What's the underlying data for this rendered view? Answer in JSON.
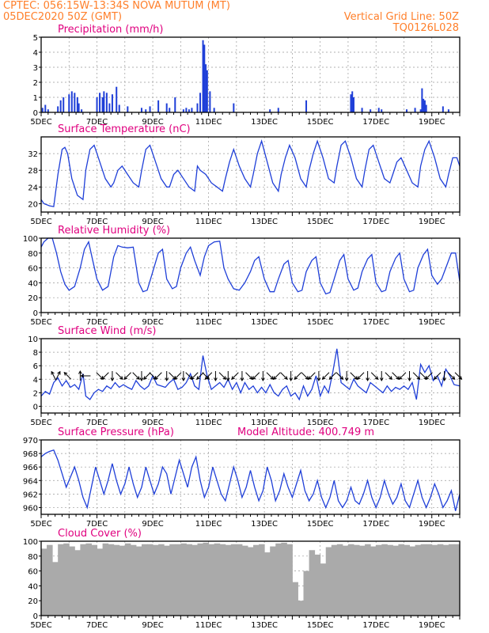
{
  "header": {
    "source_line": "CPTEC:  056:15W-13:34S  NOVA MUTUM (MT)",
    "init_line": "05DEC2020 50Z (GMT)",
    "grid_line": "Vertical Grid Line: 50Z",
    "model_code": "TQ0126L028"
  },
  "colors": {
    "line": "#1f3fd8",
    "header": "#ff7f2a",
    "title": "#e0007f",
    "cloud": "#aaaaaa",
    "grid": "#999999"
  },
  "chart_data": [
    {
      "type": "bar",
      "title": "Precipitation (mm/h)",
      "ylim": [
        0,
        5
      ],
      "yticks": [
        0,
        1,
        2,
        3,
        4,
        5
      ],
      "xticks": [
        "5DEC",
        "7DEC",
        "9DEC",
        "11DEC",
        "13DEC",
        "15DEC",
        "17DEC",
        "19DEC"
      ],
      "xrange": [
        5,
        20
      ],
      "x": [
        5.05,
        5.15,
        5.25,
        5.6,
        5.7,
        5.8,
        6.0,
        6.1,
        6.2,
        6.3,
        6.35,
        6.45,
        7.0,
        7.1,
        7.2,
        7.25,
        7.35,
        7.45,
        7.55,
        7.7,
        7.8,
        8.1,
        8.6,
        8.75,
        8.9,
        9.2,
        9.5,
        9.6,
        9.8,
        10.1,
        10.2,
        10.3,
        10.4,
        10.6,
        10.7,
        10.8,
        10.82,
        10.85,
        10.9,
        10.95,
        11.05,
        11.2,
        11.9,
        13.2,
        13.5,
        14.5,
        16.1,
        16.15,
        16.2,
        16.5,
        16.8,
        17.1,
        17.2,
        18.1,
        18.4,
        18.6,
        18.65,
        18.7,
        18.75,
        18.8,
        19.4,
        19.6
      ],
      "values": [
        0.3,
        0.5,
        0.2,
        0.4,
        0.8,
        1.0,
        1.2,
        1.4,
        1.3,
        1.0,
        0.6,
        0.2,
        1.0,
        1.3,
        1.0,
        1.4,
        1.3,
        0.6,
        1.2,
        1.7,
        0.5,
        0.4,
        0.3,
        0.2,
        0.4,
        0.8,
        0.6,
        0.3,
        1.0,
        0.2,
        0.3,
        0.2,
        0.3,
        0.6,
        1.3,
        4.8,
        2.8,
        4.5,
        3.2,
        2.8,
        1.4,
        0.3,
        0.6,
        0.2,
        0.3,
        0.8,
        1.2,
        1.4,
        1.0,
        0.3,
        0.2,
        0.3,
        0.2,
        0.2,
        0.3,
        0.2,
        1.6,
        0.9,
        0.8,
        0.5,
        0.4,
        0.2
      ]
    },
    {
      "type": "line",
      "title": "Surface Temperature (nC)",
      "ylim": [
        18,
        36
      ],
      "yticks": [
        20,
        24,
        28,
        32
      ],
      "xticks": [
        "5DEC",
        "7DEC",
        "9DEC",
        "11DEC",
        "13DEC",
        "15DEC",
        "17DEC",
        "19DEC"
      ],
      "xrange": [
        5,
        20
      ],
      "x": [
        5.0,
        5.1,
        5.3,
        5.45,
        5.6,
        5.75,
        5.85,
        5.95,
        6.1,
        6.3,
        6.5,
        6.6,
        6.75,
        6.9,
        7.1,
        7.3,
        7.5,
        7.6,
        7.75,
        7.9,
        8.1,
        8.3,
        8.5,
        8.6,
        8.75,
        8.9,
        9.1,
        9.3,
        9.5,
        9.6,
        9.75,
        9.9,
        10.1,
        10.3,
        10.5,
        10.6,
        10.7,
        10.9,
        11.1,
        11.3,
        11.5,
        11.6,
        11.75,
        11.9,
        12.1,
        12.3,
        12.5,
        12.6,
        12.75,
        12.9,
        13.1,
        13.3,
        13.5,
        13.6,
        13.75,
        13.9,
        14.1,
        14.3,
        14.5,
        14.6,
        14.75,
        14.9,
        15.1,
        15.3,
        15.5,
        15.6,
        15.75,
        15.9,
        16.1,
        16.3,
        16.5,
        16.6,
        16.75,
        16.9,
        17.1,
        17.3,
        17.5,
        17.6,
        17.75,
        17.9,
        18.1,
        18.3,
        18.5,
        18.6,
        18.75,
        18.9,
        19.1,
        19.3,
        19.5,
        19.6,
        19.75,
        19.9,
        20.0
      ],
      "values": [
        21,
        20,
        19.5,
        19.3,
        27,
        33,
        33.5,
        32,
        26,
        22,
        21,
        28,
        33,
        34,
        30,
        26,
        24,
        25,
        28,
        29,
        27,
        25,
        24,
        28,
        33,
        34,
        30,
        26,
        24,
        24,
        27,
        28,
        26,
        24,
        23,
        29,
        28,
        27,
        25,
        24,
        23,
        26,
        30,
        33,
        29,
        26,
        24,
        27,
        32,
        35,
        30,
        25,
        23,
        27,
        31,
        34,
        31,
        26,
        24,
        28,
        32,
        35,
        31,
        26,
        25,
        29,
        34,
        35,
        31,
        26,
        24,
        28,
        33,
        34,
        30,
        26,
        25,
        27,
        30,
        31,
        28,
        25,
        24,
        29,
        33,
        35,
        31,
        26,
        24,
        27,
        31,
        31,
        29
      ]
    },
    {
      "type": "line",
      "title": "Relative Humidity (%)",
      "ylim": [
        0,
        100
      ],
      "yticks": [
        0,
        20,
        40,
        60,
        80,
        100
      ],
      "xticks": [
        "5DEC",
        "7DEC",
        "9DEC",
        "11DEC",
        "13DEC",
        "15DEC",
        "17DEC",
        "19DEC"
      ],
      "xrange": [
        5,
        20
      ],
      "x": [
        5.0,
        5.1,
        5.25,
        5.4,
        5.55,
        5.7,
        5.85,
        6.0,
        6.2,
        6.4,
        6.55,
        6.7,
        6.85,
        7.0,
        7.2,
        7.4,
        7.6,
        7.75,
        7.9,
        8.1,
        8.3,
        8.5,
        8.65,
        8.8,
        9.0,
        9.2,
        9.35,
        9.5,
        9.7,
        9.85,
        10.0,
        10.2,
        10.35,
        10.5,
        10.7,
        10.85,
        11.0,
        11.2,
        11.4,
        11.55,
        11.7,
        11.9,
        12.1,
        12.3,
        12.5,
        12.65,
        12.8,
        13.0,
        13.2,
        13.35,
        13.5,
        13.7,
        13.85,
        14.0,
        14.2,
        14.35,
        14.5,
        14.7,
        14.85,
        15.0,
        15.2,
        15.35,
        15.5,
        15.7,
        15.85,
        16.0,
        16.2,
        16.35,
        16.5,
        16.7,
        16.85,
        17.0,
        17.2,
        17.35,
        17.5,
        17.7,
        17.85,
        18.0,
        18.2,
        18.35,
        18.5,
        18.7,
        18.85,
        19.0,
        19.2,
        19.35,
        19.5,
        19.7,
        19.85,
        20.0
      ],
      "values": [
        88,
        95,
        100,
        100,
        80,
        55,
        38,
        30,
        35,
        60,
        85,
        95,
        70,
        45,
        30,
        35,
        75,
        90,
        88,
        87,
        88,
        40,
        28,
        30,
        55,
        80,
        85,
        45,
        32,
        35,
        60,
        80,
        88,
        70,
        50,
        75,
        90,
        95,
        96,
        60,
        45,
        32,
        30,
        40,
        55,
        70,
        75,
        45,
        28,
        28,
        45,
        65,
        70,
        40,
        28,
        30,
        55,
        70,
        75,
        40,
        25,
        27,
        45,
        70,
        78,
        45,
        30,
        33,
        55,
        72,
        78,
        40,
        28,
        30,
        55,
        73,
        80,
        45,
        28,
        30,
        60,
        78,
        85,
        50,
        38,
        45,
        60,
        80,
        80,
        42
      ]
    },
    {
      "type": "line",
      "title": "Surface Wind (m/s)",
      "ylim": [
        -1,
        10
      ],
      "yticks": [
        0,
        2,
        4,
        6,
        8,
        10
      ],
      "xticks": [
        "5DEC",
        "7DEC",
        "9DEC",
        "11DEC",
        "13DEC",
        "15DEC",
        "17DEC",
        "19DEC"
      ],
      "xrange": [
        5,
        20
      ],
      "x": [
        5.0,
        5.15,
        5.3,
        5.45,
        5.6,
        5.75,
        5.9,
        6.05,
        6.2,
        6.35,
        6.5,
        6.6,
        6.75,
        6.9,
        7.05,
        7.2,
        7.35,
        7.5,
        7.65,
        7.8,
        7.95,
        8.1,
        8.25,
        8.4,
        8.55,
        8.7,
        8.85,
        9.0,
        9.15,
        9.3,
        9.45,
        9.6,
        9.75,
        9.9,
        10.05,
        10.2,
        10.35,
        10.5,
        10.65,
        10.8,
        10.95,
        11.1,
        11.25,
        11.4,
        11.55,
        11.7,
        11.85,
        12.0,
        12.15,
        12.3,
        12.45,
        12.6,
        12.75,
        12.9,
        13.05,
        13.2,
        13.35,
        13.5,
        13.65,
        13.8,
        13.95,
        14.1,
        14.25,
        14.4,
        14.55,
        14.7,
        14.85,
        15.0,
        15.15,
        15.3,
        15.45,
        15.6,
        15.75,
        15.9,
        16.05,
        16.2,
        16.35,
        16.5,
        16.65,
        16.8,
        16.95,
        17.1,
        17.25,
        17.4,
        17.55,
        17.7,
        17.85,
        18.0,
        18.15,
        18.3,
        18.45,
        18.6,
        18.75,
        18.9,
        19.05,
        19.2,
        19.35,
        19.5,
        19.65,
        19.8,
        20.0
      ],
      "values": [
        1.5,
        2.2,
        1.8,
        3.5,
        4.2,
        3.0,
        3.8,
        2.8,
        3.2,
        2.5,
        4.8,
        1.5,
        1.0,
        2.0,
        2.5,
        2.2,
        3.0,
        2.6,
        3.5,
        2.8,
        3.2,
        2.8,
        2.5,
        3.8,
        3.0,
        2.5,
        3.0,
        4.5,
        3.2,
        3.0,
        2.8,
        3.5,
        4.0,
        2.5,
        2.8,
        3.5,
        4.8,
        3.0,
        2.5,
        7.5,
        4.5,
        2.5,
        3.0,
        3.5,
        2.8,
        4.0,
        2.5,
        3.5,
        2.0,
        3.5,
        2.5,
        3.0,
        2.0,
        2.8,
        2.0,
        3.2,
        2.0,
        1.5,
        2.5,
        3.0,
        1.5,
        2.0,
        1.0,
        3.0,
        1.5,
        2.5,
        4.5,
        1.5,
        3.0,
        2.0,
        5.0,
        8.5,
        3.5,
        3.0,
        2.5,
        4.0,
        3.0,
        2.5,
        2.0,
        3.5,
        3.0,
        2.5,
        2.0,
        3.0,
        2.2,
        2.8,
        2.5,
        3.0,
        2.5,
        3.5,
        1.0,
        6.2,
        5.0,
        6.0,
        3.8,
        4.5,
        3.0,
        5.5,
        4.5,
        3.2,
        3.0
      ]
    },
    {
      "type": "line",
      "title": "Surface Pressure (hPa)",
      "subtitle": "Model Altitude: 400.749  m",
      "ylim": [
        959,
        970
      ],
      "yticks": [
        960,
        962,
        964,
        966,
        968,
        970
      ],
      "xticks": [
        "5DEC",
        "7DEC",
        "9DEC",
        "11DEC",
        "13DEC",
        "15DEC",
        "17DEC",
        "19DEC"
      ],
      "xrange": [
        5,
        20
      ],
      "x": [
        5.0,
        5.15,
        5.3,
        5.45,
        5.6,
        5.75,
        5.9,
        6.05,
        6.2,
        6.35,
        6.5,
        6.65,
        6.8,
        6.95,
        7.1,
        7.25,
        7.4,
        7.55,
        7.7,
        7.85,
        8.0,
        8.15,
        8.3,
        8.45,
        8.6,
        8.75,
        8.9,
        9.05,
        9.2,
        9.35,
        9.5,
        9.65,
        9.8,
        9.95,
        10.1,
        10.25,
        10.4,
        10.55,
        10.7,
        10.85,
        11.0,
        11.15,
        11.3,
        11.45,
        11.6,
        11.75,
        11.9,
        12.05,
        12.2,
        12.35,
        12.5,
        12.65,
        12.8,
        12.95,
        13.1,
        13.25,
        13.4,
        13.55,
        13.7,
        13.85,
        14.0,
        14.15,
        14.3,
        14.45,
        14.6,
        14.75,
        14.9,
        15.05,
        15.2,
        15.35,
        15.5,
        15.65,
        15.8,
        15.95,
        16.1,
        16.25,
        16.4,
        16.55,
        16.7,
        16.85,
        17.0,
        17.15,
        17.3,
        17.45,
        17.6,
        17.75,
        17.9,
        18.05,
        18.2,
        18.35,
        18.5,
        18.65,
        18.8,
        18.95,
        19.1,
        19.25,
        19.4,
        19.55,
        19.7,
        19.85,
        20.0
      ],
      "values": [
        967.5,
        968.0,
        968.3,
        968.5,
        967.0,
        965.0,
        963.0,
        964.5,
        966.0,
        964.0,
        961.5,
        960.0,
        963.0,
        966.0,
        964.0,
        962.0,
        964.0,
        966.5,
        964.0,
        962.0,
        963.5,
        966.0,
        963.5,
        961.5,
        963.0,
        966.0,
        964.0,
        962.0,
        963.5,
        966.0,
        965.0,
        962.0,
        964.5,
        967.0,
        965.0,
        963.0,
        966.0,
        967.5,
        964.0,
        961.5,
        963.0,
        966.0,
        964.0,
        962.0,
        961.0,
        963.5,
        966.0,
        964.0,
        961.5,
        963.0,
        965.5,
        963.0,
        961.0,
        962.5,
        966.0,
        964.0,
        961.0,
        962.5,
        965.0,
        963.0,
        961.5,
        963.5,
        965.5,
        962.5,
        961.0,
        962.0,
        964.0,
        961.5,
        960.0,
        961.5,
        964.0,
        961.0,
        960.0,
        961.0,
        963.0,
        961.0,
        960.5,
        962.0,
        964.0,
        961.5,
        960.0,
        961.5,
        964.0,
        962.0,
        960.5,
        961.5,
        963.5,
        961.0,
        960.0,
        962.0,
        964.0,
        961.5,
        960.0,
        961.5,
        963.5,
        962.0,
        960.0,
        961.0,
        962.5,
        959.5,
        962.0
      ]
    },
    {
      "type": "bar",
      "title": "Cloud Cover (%)",
      "ylim": [
        0,
        100
      ],
      "yticks": [
        0,
        20,
        40,
        60,
        80,
        100
      ],
      "xticks": [
        "5DEC",
        "7DEC",
        "9DEC",
        "11DEC",
        "13DEC",
        "15DEC",
        "17DEC",
        "19DEC"
      ],
      "xrange": [
        5,
        20
      ],
      "x": [
        5.0,
        5.2,
        5.4,
        5.6,
        5.8,
        6.0,
        6.2,
        6.4,
        6.6,
        6.8,
        7.0,
        7.2,
        7.4,
        7.6,
        7.8,
        8.0,
        8.2,
        8.4,
        8.6,
        8.8,
        9.0,
        9.2,
        9.4,
        9.6,
        9.8,
        10.0,
        10.2,
        10.4,
        10.6,
        10.8,
        11.0,
        11.2,
        11.4,
        11.6,
        11.8,
        12.0,
        12.2,
        12.4,
        12.6,
        12.8,
        13.0,
        13.2,
        13.4,
        13.6,
        13.8,
        14.0,
        14.2,
        14.4,
        14.6,
        14.8,
        15.0,
        15.2,
        15.4,
        15.6,
        15.8,
        16.0,
        16.2,
        16.4,
        16.6,
        16.8,
        17.0,
        17.2,
        17.4,
        17.6,
        17.8,
        18.0,
        18.2,
        18.4,
        18.6,
        18.8,
        19.0,
        19.2,
        19.4,
        19.6,
        19.8
      ],
      "values": [
        90,
        95,
        72,
        96,
        97,
        93,
        88,
        96,
        97,
        95,
        90,
        97,
        96,
        95,
        94,
        97,
        95,
        93,
        96,
        96,
        95,
        96,
        94,
        96,
        96,
        97,
        96,
        95,
        97,
        98,
        96,
        97,
        96,
        95,
        96,
        96,
        94,
        92,
        95,
        96,
        85,
        93,
        97,
        98,
        96,
        45,
        20,
        60,
        88,
        82,
        70,
        92,
        95,
        96,
        94,
        96,
        95,
        94,
        96,
        93,
        95,
        96,
        95,
        94,
        96,
        95,
        93,
        95,
        96,
        96,
        95,
        96,
        95,
        96,
        96
      ]
    }
  ],
  "wind_vectors": {
    "x": [
      5.45,
      5.6,
      5.95,
      6.4,
      6.6,
      7.1,
      7.3,
      7.55,
      7.8,
      8.1,
      8.4,
      8.6,
      8.8,
      9.0,
      9.2,
      9.5,
      9.7,
      9.9,
      10.1,
      10.3,
      10.5,
      10.7,
      10.9,
      11.0,
      11.25,
      11.5,
      11.7,
      11.95,
      12.2,
      12.45,
      12.7,
      12.95,
      13.2,
      13.45,
      13.7,
      13.95,
      14.2,
      14.45,
      14.7,
      14.95,
      15.2,
      15.45,
      15.7,
      15.95,
      16.2,
      16.45,
      16.7,
      16.95,
      17.2,
      17.45,
      17.7,
      17.95,
      18.2,
      18.45,
      18.7,
      18.9,
      19.2,
      19.45,
      19.7,
      19.95
    ],
    "u": [
      -1,
      1,
      -1,
      0,
      -2,
      1,
      -1,
      0,
      1,
      -1,
      1,
      0,
      -1,
      1,
      -1,
      0,
      1,
      -1,
      0,
      1,
      -1,
      -1,
      1,
      -1,
      0,
      1,
      0,
      -1,
      0,
      1,
      -1,
      0,
      1,
      -1,
      1,
      0,
      -1,
      1,
      -1,
      0,
      -1,
      -1,
      1,
      0,
      1,
      -1,
      0,
      1,
      0,
      1,
      1,
      -1,
      0,
      1,
      1,
      -1,
      -1,
      0,
      1,
      1
    ],
    "v": [
      2,
      2,
      1,
      1,
      0,
      -1,
      -1,
      -1,
      -1,
      -1,
      -1,
      -1,
      -1,
      -1,
      -1,
      -1,
      -1,
      -1,
      -1,
      -1,
      -1,
      -1,
      -1,
      -1,
      -1,
      -1,
      -1,
      -1,
      -1,
      -1,
      -1,
      -1,
      -1,
      -1,
      -1,
      -1,
      -1,
      -1,
      -1,
      -1,
      -1,
      -1,
      -1,
      -1,
      -1,
      -1,
      -1,
      -1,
      -1,
      -1,
      -1,
      -1,
      -1,
      -1,
      -1,
      -1,
      -1,
      -1,
      -1,
      -1
    ]
  }
}
